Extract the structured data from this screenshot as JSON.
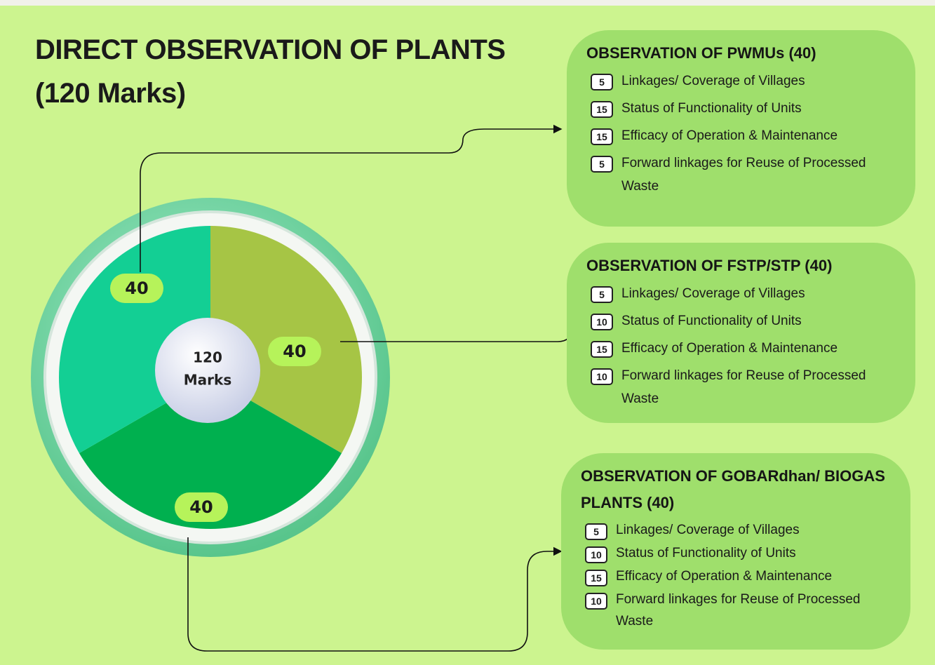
{
  "title": "DIRECT OBSERVATION OF PLANTS",
  "subtitle": "(120 Marks)",
  "center": {
    "value": 120,
    "label": "Marks"
  },
  "segments": [
    {
      "value": 40,
      "color": "#a6c545"
    },
    {
      "value": 40,
      "color": "#00b04f"
    },
    {
      "value": 40,
      "color": "#13cf94"
    }
  ],
  "panels": [
    {
      "title": "OBSERVATION OF PWMUs (40)",
      "items": [
        {
          "marks": 5,
          "text": "Linkages/ Coverage of Villages"
        },
        {
          "marks": 15,
          "text": "Status of Functionality of Units"
        },
        {
          "marks": 15,
          "text": "Efficacy of Operation & Maintenance"
        },
        {
          "marks": 5,
          "text": "Forward linkages for Reuse of Processed Waste"
        }
      ]
    },
    {
      "title": "OBSERVATION OF FSTP/STP (40)",
      "items": [
        {
          "marks": 5,
          "text": "Linkages/ Coverage of Villages"
        },
        {
          "marks": 10,
          "text": "Status of Functionality of Units"
        },
        {
          "marks": 15,
          "text": "Efficacy of Operation & Maintenance"
        },
        {
          "marks": 10,
          "text": "Forward linkages for Reuse of Processed Waste"
        }
      ]
    },
    {
      "title": "OBSERVATION OF GOBARdhan/ BIOGAS PLANTS (40)",
      "items": [
        {
          "marks": 5,
          "text": "Linkages/ Coverage of Villages"
        },
        {
          "marks": 10,
          "text": "Status of Functionality of Units"
        },
        {
          "marks": 15,
          "text": "Efficacy of Operation & Maintenance"
        },
        {
          "marks": 10,
          "text": "Forward linkages for Reuse of Processed Waste"
        }
      ]
    }
  ]
}
